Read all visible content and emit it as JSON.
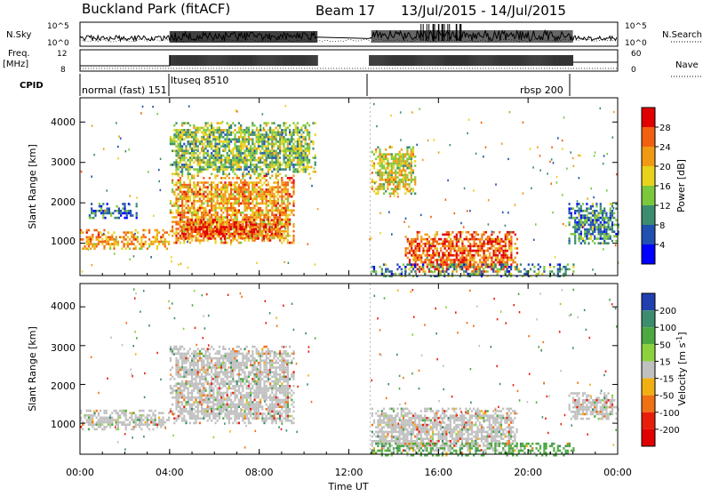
{
  "header": {
    "station": "Buckland Park (fitACF)",
    "beam": "Beam 17",
    "date_range": "13/Jul/2015 - 14/Jul/2015"
  },
  "top_panels": {
    "nsky_label": "N.Sky",
    "nsearch_label": "N.Search",
    "nsky_ticks": [
      "10^5",
      "10^0"
    ],
    "nsearch_ticks": [
      "10^5",
      "10^0"
    ],
    "freq_label_1": "Freq.",
    "freq_label_2": "[MHz]",
    "freq_ticks": [
      "12",
      "8"
    ],
    "nave_label": "Nave",
    "nave_ticks": [
      "60",
      "0"
    ],
    "cpid_label": "CPID",
    "cpid_segments": [
      {
        "label": "normal (fast) 151",
        "start_hour": 0,
        "end_hour": 4
      },
      {
        "label": "ltuseq 8510",
        "start_hour": 4,
        "end_hour": 13
      },
      {
        "label": "rbsp 200",
        "start_hour": 13,
        "end_hour": 22
      }
    ]
  },
  "axes": {
    "x_ticks": [
      "00:00",
      "04:00",
      "08:00",
      "12:00",
      "16:00",
      "20:00",
      "00:00"
    ],
    "x_tick_hours": [
      0,
      4,
      8,
      12,
      16,
      20,
      24
    ],
    "xlabel": "Time UT",
    "ylabel": "Slant Range [km]",
    "y_ticks": [
      "1000",
      "2000",
      "3000",
      "4000"
    ],
    "y_tick_values": [
      1000,
      2000,
      3000,
      4000
    ],
    "ylim": [
      200,
      4600
    ],
    "xlim": [
      0,
      24
    ]
  },
  "power_colorbar": {
    "title": "Power [dB]",
    "labels": [
      "4",
      "8",
      "12",
      "16",
      "20",
      "24",
      "28"
    ],
    "colors": [
      "#0000ff",
      "#2050b0",
      "#3c8c6e",
      "#7cc83c",
      "#e8d21c",
      "#f09a14",
      "#f06010",
      "#e00000"
    ]
  },
  "velocity_colorbar": {
    "title": "Velocity [m s-1]",
    "title_main": "Velocity [m s",
    "title_sup": "-1",
    "title_end": "]",
    "labels": [
      "200",
      "100",
      "50",
      "15",
      "-15",
      "-50",
      "-100",
      "-200"
    ],
    "colors": [
      "#2040b0",
      "#3c8c6e",
      "#4ca840",
      "#8cd23c",
      "#c0c0c0",
      "#f0b014",
      "#f07014",
      "#e81e0a",
      "#e00000"
    ]
  },
  "chart_data": [
    {
      "type": "heatmap",
      "title": "",
      "xlabel": "Time UT",
      "ylabel": "Slant Range [km]",
      "colorbar": "Power [dB]",
      "xlim": [
        0,
        24
      ],
      "ylim": [
        200,
        4600
      ],
      "regions": [
        {
          "t0": 0.0,
          "t1": 4.0,
          "r0": 850,
          "r1": 1350,
          "value_db": 22
        },
        {
          "t0": 0.3,
          "t1": 2.5,
          "r0": 1600,
          "r1": 2000,
          "value_db": 8
        },
        {
          "t0": 4.0,
          "t1": 9.5,
          "r0": 1000,
          "r1": 2700,
          "value_db": 22
        },
        {
          "t0": 4.5,
          "t1": 9.0,
          "r0": 1100,
          "r1": 1600,
          "value_db": 28
        },
        {
          "t0": 4.0,
          "t1": 10.5,
          "r0": 2700,
          "r1": 4000,
          "value_db": 14
        },
        {
          "t0": 13.0,
          "t1": 15.0,
          "r0": 2200,
          "r1": 3400,
          "value_db": 18
        },
        {
          "t0": 14.5,
          "t1": 19.5,
          "r0": 300,
          "r1": 1300,
          "value_db": 26
        },
        {
          "t0": 13.0,
          "t1": 22.0,
          "r0": 200,
          "r1": 500,
          "value_db": 10
        },
        {
          "t0": 21.8,
          "t1": 24.0,
          "r0": 1000,
          "r1": 2000,
          "value_db": 10
        }
      ]
    },
    {
      "type": "heatmap",
      "title": "",
      "xlabel": "Time UT",
      "ylabel": "Slant Range [km]",
      "colorbar": "Velocity [m s-1]",
      "xlim": [
        0,
        24
      ],
      "ylim": [
        200,
        4600
      ],
      "regions": [
        {
          "t0": 0.0,
          "t1": 4.0,
          "r0": 850,
          "r1": 1350,
          "value_ms": 0
        },
        {
          "t0": 4.0,
          "t1": 9.5,
          "r0": 1000,
          "r1": 3000,
          "value_ms": 0
        },
        {
          "t0": 13.0,
          "t1": 19.5,
          "r0": 300,
          "r1": 1400,
          "value_ms": 0
        },
        {
          "t0": 13.0,
          "t1": 22.0,
          "r0": 200,
          "r1": 500,
          "value_ms": 40
        },
        {
          "t0": 21.8,
          "t1": 24.0,
          "r0": 1100,
          "r1": 1800,
          "value_ms": -10
        }
      ]
    }
  ]
}
